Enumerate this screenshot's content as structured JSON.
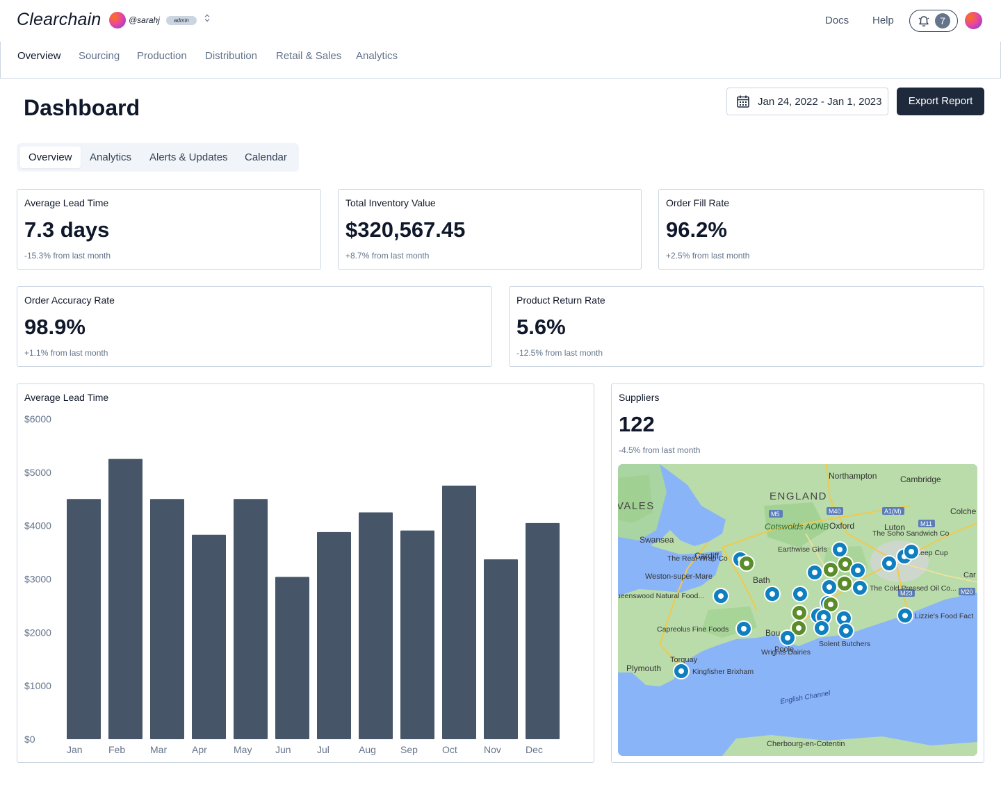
{
  "header": {
    "brand": "Clearchain",
    "username": "@sarahj",
    "role": "admin",
    "links": {
      "docs": "Docs",
      "help": "Help"
    },
    "notifications": "7"
  },
  "nav": {
    "items": [
      "Overview",
      "Sourcing",
      "Production",
      "Distribution",
      "Retail & Sales",
      "Analytics"
    ],
    "active": "Overview"
  },
  "page": {
    "title": "Dashboard",
    "date_range": "Jan 24, 2022 - Jan 1, 2023",
    "export_label": "Export Report"
  },
  "tabs": {
    "items": [
      "Overview",
      "Analytics",
      "Alerts & Updates",
      "Calendar"
    ],
    "active": "Overview"
  },
  "kpis": [
    {
      "label": "Average Lead Time",
      "value": "7.3 days",
      "delta": "-15.3% from last month"
    },
    {
      "label": "Total Inventory Value",
      "value": "$320,567.45",
      "delta": "+8.7% from last month"
    },
    {
      "label": "Order Fill Rate",
      "value": "96.2%",
      "delta": "+2.5% from last month"
    },
    {
      "label": "Order Accuracy Rate",
      "value": "98.9%",
      "delta": "+1.1% from last month"
    },
    {
      "label": "Product Return Rate",
      "value": "5.6%",
      "delta": "-12.5% from last month"
    }
  ],
  "chart_data": {
    "type": "bar",
    "title": "Average Lead Time",
    "categories": [
      "Jan",
      "Feb",
      "Mar",
      "Apr",
      "May",
      "Jun",
      "Jul",
      "Aug",
      "Sep",
      "Oct",
      "Nov",
      "Dec"
    ],
    "values": [
      4500,
      5250,
      4500,
      3830,
      4500,
      3040,
      3880,
      4250,
      3910,
      4750,
      3370,
      4050
    ],
    "ylim": [
      0,
      6000
    ],
    "yticks": [
      "$0",
      "$1000",
      "$2000",
      "$3000",
      "$4000",
      "$5000",
      "$6000"
    ],
    "bar_color": "#475569",
    "grid": false
  },
  "suppliers": {
    "label": "Suppliers",
    "value": "122",
    "delta": "-4.5% from last month",
    "map": {
      "places": [
        "Northampton",
        "Cambridge",
        "ENGLAND",
        "VALES",
        "Colche",
        "Swansea",
        "Cotswolds AONB",
        "Oxford",
        "Luton",
        "Cardiff",
        "Bath",
        "Weston-super-Mare",
        "Torquay",
        "Plymouth",
        "English Channel",
        "Cherbourg-en-Cotentin",
        "Bou",
        "Poole",
        "Car"
      ],
      "suppliers": [
        "The Real Wrap Co",
        "Earthwise Girls",
        "The Soho Sandwich Co",
        "Keep Cup",
        "ueenswood Natural Food...",
        "The Cold Pressed Oil Co...",
        "Lizzie's Food Fact",
        "Capreolus Fine Foods",
        "Wrights Dairies",
        "Solent Butchers",
        "Kingfisher Brixham"
      ],
      "roads": [
        "M5",
        "M40",
        "A1(M)",
        "M11",
        "M23",
        "M20"
      ]
    }
  }
}
